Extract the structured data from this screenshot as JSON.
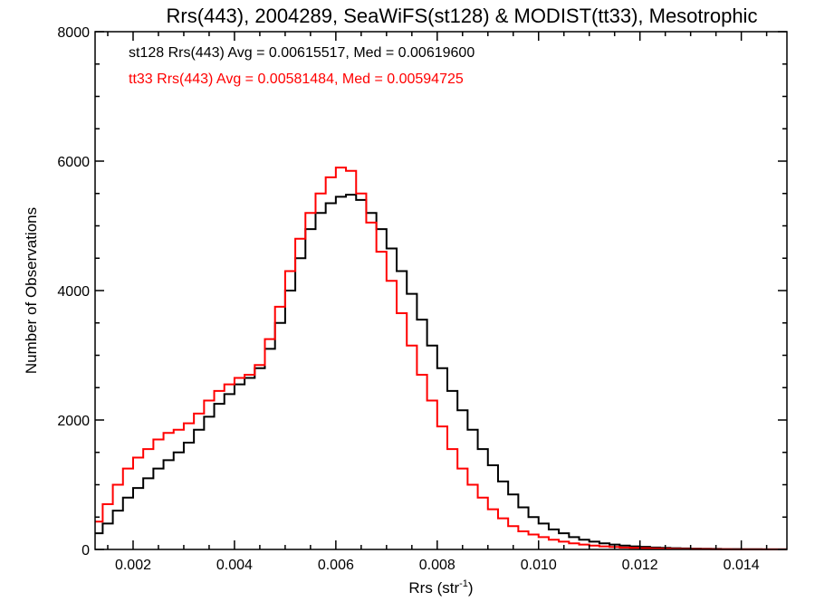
{
  "chart_data": {
    "type": "line",
    "title": "Rrs(443), 2004289, SeaWiFS(st128) & MODIST(tt33), Mesotrophic",
    "xlabel": "Rrs (str",
    "xlabel_sup": "-1",
    "xlabel_end": ")",
    "ylabel": "Number of Observations",
    "xlim": [
      0.00125,
      0.0149
    ],
    "ylim": [
      0,
      8000
    ],
    "grid": false,
    "x_ticks": [
      0.002,
      0.004,
      0.006,
      0.008,
      0.01,
      0.012,
      0.014
    ],
    "x_tick_labels": [
      "0.002",
      "0.004",
      "0.006",
      "0.008",
      "0.010",
      "0.012",
      "0.014"
    ],
    "y_ticks": [
      0,
      2000,
      4000,
      6000,
      8000
    ],
    "y_tick_labels": [
      "0",
      "2000",
      "4000",
      "6000",
      "8000"
    ],
    "annotations": [
      {
        "text": "st128 Rrs(443) Avg = 0.00615517, Med = 0.00619600",
        "color": "#000000"
      },
      {
        "text": "tt33 Rrs(443) Avg = 0.00581484, Med = 0.00594725",
        "color": "#ff0000"
      }
    ],
    "series": [
      {
        "color": "#000000",
        "x": [
          0.00125,
          0.0014,
          0.0016,
          0.0018,
          0.002,
          0.0022,
          0.0024,
          0.0026,
          0.0028,
          0.003,
          0.0032,
          0.0034,
          0.0036,
          0.0038,
          0.004,
          0.0042,
          0.0044,
          0.0046,
          0.0048,
          0.005,
          0.0052,
          0.0054,
          0.0056,
          0.0058,
          0.006,
          0.0062,
          0.0064,
          0.0066,
          0.0068,
          0.007,
          0.0072,
          0.0074,
          0.0076,
          0.0078,
          0.008,
          0.0082,
          0.0084,
          0.0086,
          0.0088,
          0.009,
          0.0092,
          0.0094,
          0.0096,
          0.0098,
          0.01,
          0.0102,
          0.0104,
          0.0106,
          0.0108,
          0.011,
          0.0112,
          0.0114,
          0.0116,
          0.0118,
          0.012,
          0.0122,
          0.0124,
          0.0126,
          0.0128,
          0.013,
          0.0132,
          0.0134,
          0.0136,
          0.0138,
          0.014,
          0.0142,
          0.0144,
          0.0146,
          0.0148
        ],
        "y": [
          250,
          400,
          600,
          800,
          950,
          1100,
          1250,
          1380,
          1500,
          1650,
          1850,
          2050,
          2250,
          2400,
          2550,
          2650,
          2800,
          3100,
          3500,
          4000,
          4500,
          4950,
          5200,
          5350,
          5450,
          5480,
          5400,
          5200,
          4950,
          4650,
          4300,
          3950,
          3550,
          3150,
          2800,
          2450,
          2150,
          1850,
          1550,
          1300,
          1050,
          850,
          650,
          500,
          400,
          310,
          250,
          190,
          150,
          120,
          95,
          75,
          60,
          48,
          40,
          30,
          25,
          20,
          15,
          12,
          10,
          8,
          6,
          5,
          4,
          3,
          2,
          2,
          1
        ]
      },
      {
        "color": "#ff0000",
        "x": [
          0.00125,
          0.0014,
          0.0016,
          0.0018,
          0.002,
          0.0022,
          0.0024,
          0.0026,
          0.0028,
          0.003,
          0.0032,
          0.0034,
          0.0036,
          0.0038,
          0.004,
          0.0042,
          0.0044,
          0.0046,
          0.0048,
          0.005,
          0.0052,
          0.0054,
          0.0056,
          0.0058,
          0.006,
          0.0062,
          0.0064,
          0.0066,
          0.0068,
          0.007,
          0.0072,
          0.0074,
          0.0076,
          0.0078,
          0.008,
          0.0082,
          0.0084,
          0.0086,
          0.0088,
          0.009,
          0.0092,
          0.0094,
          0.0096,
          0.0098,
          0.01,
          0.0102,
          0.0104,
          0.0106,
          0.0108,
          0.011,
          0.0112,
          0.0114,
          0.0116,
          0.0118,
          0.012,
          0.0122,
          0.0124,
          0.0126,
          0.0128,
          0.013,
          0.0132,
          0.0134,
          0.0136,
          0.0138,
          0.014,
          0.0142,
          0.0144,
          0.0146,
          0.0148
        ],
        "y": [
          430,
          700,
          1000,
          1250,
          1420,
          1550,
          1700,
          1800,
          1850,
          1950,
          2100,
          2300,
          2450,
          2550,
          2650,
          2700,
          2850,
          3250,
          3750,
          4300,
          4800,
          5200,
          5500,
          5750,
          5900,
          5850,
          5500,
          5050,
          4600,
          4150,
          3650,
          3150,
          2700,
          2300,
          1900,
          1550,
          1250,
          1000,
          800,
          620,
          480,
          360,
          280,
          230,
          190,
          150,
          120,
          95,
          75,
          60,
          48,
          38,
          30,
          24,
          19,
          15,
          12,
          9,
          7,
          6,
          5,
          4,
          3,
          2,
          2,
          1,
          1,
          1,
          1
        ]
      }
    ]
  }
}
